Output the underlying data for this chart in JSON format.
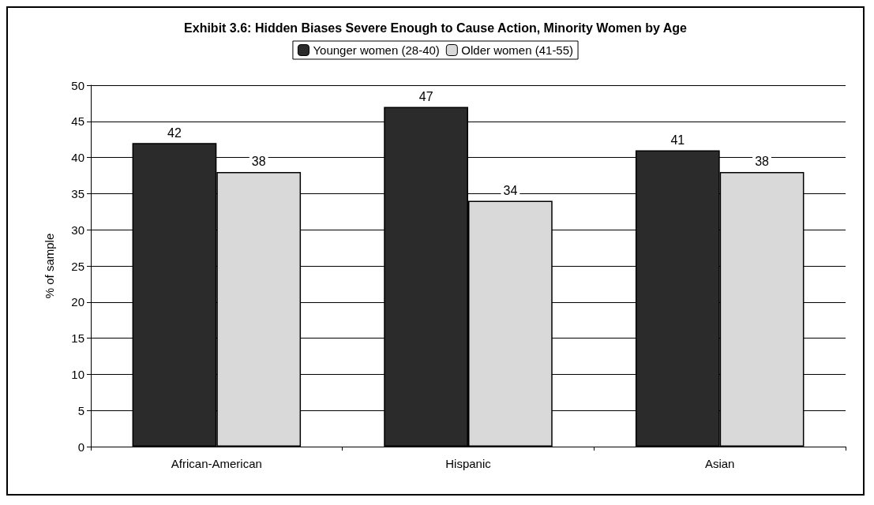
{
  "chart_data": {
    "type": "bar",
    "title": "Exhibit 3.6: Hidden Biases Severe Enough to Cause Action, Minority Women by Age",
    "ylabel": "% of sample",
    "categories": [
      "African-American",
      "Hispanic",
      "Asian"
    ],
    "series": [
      {
        "name": "Younger women (28-40)",
        "color": "#2b2b2b",
        "values": [
          42,
          47,
          41
        ]
      },
      {
        "name": "Older women (41-55)",
        "color": "#d9d9d9",
        "values": [
          38,
          34,
          38
        ]
      }
    ],
    "ylim": [
      0,
      50
    ],
    "yticks": [
      0,
      5,
      10,
      15,
      20,
      25,
      30,
      35,
      40,
      45,
      50
    ],
    "grid": "y",
    "legend": "top",
    "data_labels": true
  }
}
